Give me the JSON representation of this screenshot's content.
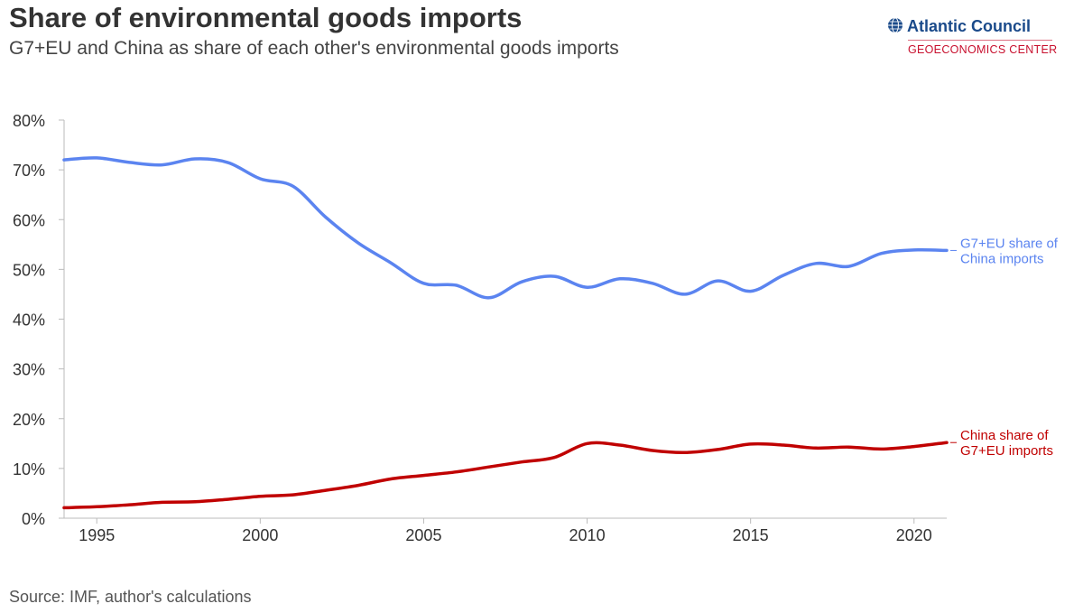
{
  "header": {
    "title": "Share of environmental goods imports",
    "subtitle": "G7+EU and China as share of each other's environmental goods imports"
  },
  "logo": {
    "name": "Atlantic Council",
    "sub": "GEOECONOMICS CENTER",
    "icon": "globe-icon"
  },
  "source": "Source: IMF, author's calculations",
  "colors": {
    "g7eu": "#5b84f0",
    "china": "#c00000",
    "axis": "#999999",
    "text": "#333333"
  },
  "chart_data": {
    "type": "line",
    "title": "Share of environmental goods imports",
    "subtitle": "G7+EU and China as share of each other's environmental goods imports",
    "xlabel": "",
    "ylabel": "",
    "xlim": [
      1994,
      2021
    ],
    "ylim": [
      0,
      80
    ],
    "x_ticks": [
      1995,
      2000,
      2005,
      2010,
      2015,
      2020
    ],
    "y_ticks": [
      0,
      10,
      20,
      30,
      40,
      50,
      60,
      70,
      80
    ],
    "y_tick_labels": [
      "0%",
      "10%",
      "20%",
      "30%",
      "40%",
      "50%",
      "60%",
      "70%",
      "80%"
    ],
    "grid": false,
    "legend": "inline labels at right end of lines",
    "x": [
      1994,
      1995,
      1996,
      1997,
      1998,
      1999,
      2000,
      2001,
      2002,
      2003,
      2004,
      2005,
      2006,
      2007,
      2008,
      2009,
      2010,
      2011,
      2012,
      2013,
      2014,
      2015,
      2016,
      2017,
      2018,
      2019,
      2020,
      2021
    ],
    "series": [
      {
        "name": "G7+EU share of China imports",
        "label_lines": [
          "G7+EU share of",
          "China imports"
        ],
        "color": "#5b84f0",
        "values": [
          72.0,
          72.4,
          71.5,
          71.0,
          72.2,
          71.5,
          68.2,
          66.7,
          60.5,
          55.3,
          51.3,
          47.2,
          46.8,
          44.3,
          47.5,
          48.6,
          46.4,
          48.1,
          47.2,
          45.0,
          47.7,
          45.6,
          48.8,
          51.2,
          50.6,
          53.2,
          53.9,
          53.8
        ]
      },
      {
        "name": "China share of G7+EU imports",
        "label_lines": [
          "China share of",
          "G7+EU imports"
        ],
        "color": "#c00000",
        "values": [
          2.1,
          2.3,
          2.7,
          3.2,
          3.3,
          3.8,
          4.4,
          4.7,
          5.6,
          6.6,
          7.9,
          8.6,
          9.3,
          10.3,
          11.3,
          12.2,
          15.0,
          14.7,
          13.6,
          13.2,
          13.8,
          14.9,
          14.7,
          14.1,
          14.3,
          13.9,
          14.4,
          15.2
        ]
      }
    ]
  }
}
